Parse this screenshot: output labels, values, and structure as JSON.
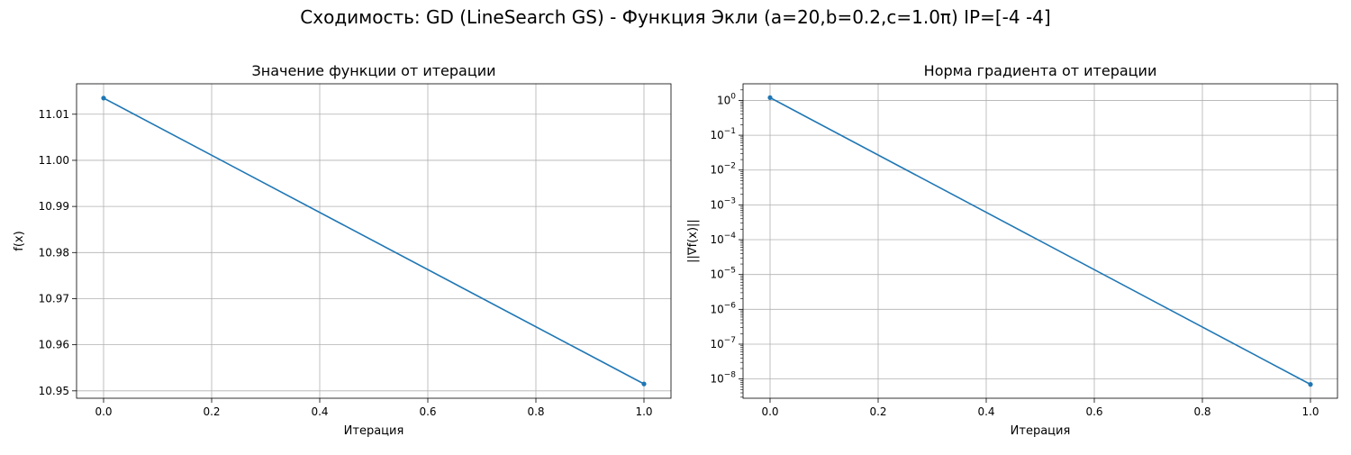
{
  "figure": {
    "suptitle": "Сходимость: GD (LineSearch GS) - Функция Экли (a=20,b=0.2,c=1.0π) IP=[-4 -4]"
  },
  "colors": {
    "series": "#1f77b4",
    "grid": "#b0b0b0"
  },
  "chart_data": [
    {
      "type": "line",
      "title": "Значение функции от итерации",
      "xlabel": "Итерация",
      "ylabel": "f(x)",
      "x": [
        0,
        1
      ],
      "series": [
        {
          "values": [
            11.0135,
            10.9515
          ]
        }
      ],
      "xlim": [
        -0.05,
        1.05
      ],
      "ylim": [
        10.9484,
        11.0166
      ],
      "xticks": [
        0,
        0.2,
        0.4,
        0.6,
        0.8,
        1.0
      ],
      "xtick_labels": [
        "0.0",
        "0.2",
        "0.4",
        "0.6",
        "0.8",
        "1.0"
      ],
      "yticks": [
        10.95,
        10.96,
        10.97,
        10.98,
        10.99,
        11.0,
        11.01
      ],
      "ytick_labels": [
        "10.95",
        "10.96",
        "10.97",
        "10.98",
        "10.99",
        "11.00",
        "11.01"
      ],
      "yscale": "linear",
      "grid": true,
      "marker": "circle"
    },
    {
      "type": "line",
      "title": "Норма градиента от итерации",
      "xlabel": "Итерация",
      "ylabel": "||∇f(x)||",
      "x": [
        0,
        1
      ],
      "series": [
        {
          "values": [
            1.2,
            7e-09
          ]
        }
      ],
      "xlim": [
        -0.05,
        1.05
      ],
      "ylim": [
        2.8e-09,
        3.0
      ],
      "xticks": [
        0,
        0.2,
        0.4,
        0.6,
        0.8,
        1.0
      ],
      "xtick_labels": [
        "0.0",
        "0.2",
        "0.4",
        "0.6",
        "0.8",
        "1.0"
      ],
      "yticks": [
        1e-08,
        1e-07,
        1e-06,
        1e-05,
        0.0001,
        0.001,
        0.01,
        0.1,
        1
      ],
      "ytick_bases": [
        "10",
        "10",
        "10",
        "10",
        "10",
        "10",
        "10",
        "10",
        "10"
      ],
      "ytick_exponents": [
        "−8",
        "−7",
        "−6",
        "−5",
        "−4",
        "−3",
        "−2",
        "−1",
        "0"
      ],
      "yscale": "log",
      "grid": true,
      "marker": "circle"
    }
  ]
}
